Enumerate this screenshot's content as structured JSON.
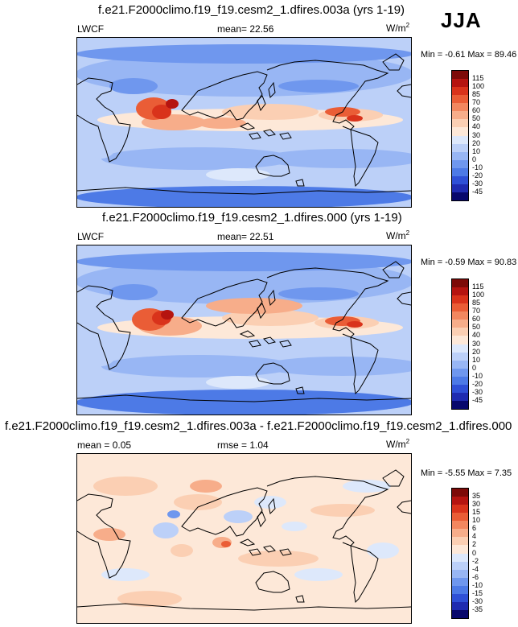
{
  "season": "JJA",
  "colors": {
    "abs_palette": [
      "#f2f2f2",
      "#08086c",
      "#1f2bb0",
      "#2f50d6",
      "#4d7ae6",
      "#6f97ee",
      "#98b6f4",
      "#bcd0f8",
      "#dde8fb",
      "#fde8d8",
      "#fbcfb3",
      "#f7ad8a",
      "#f2875f",
      "#ea5d36",
      "#d9331b",
      "#b51410",
      "#7d0a08"
    ],
    "diff_palette": [
      "#08086c",
      "#1f2bb0",
      "#2f50d6",
      "#4d7ae6",
      "#6f97ee",
      "#98b6f4",
      "#bcd0f8",
      "#dde8fb",
      "#fde8d8",
      "#fbcfb3",
      "#f7ad8a",
      "#f2875f",
      "#ea5d36",
      "#d9331b",
      "#b51410",
      "#7d0a08"
    ]
  },
  "panels": [
    {
      "title": "f.e21.F2000climo.f19_f19.cesm2_1.dfires.003a (yrs 1-19)",
      "left_label": "LWCF",
      "center_label": "mean=  22.56",
      "units": "W/m",
      "units_sup": "2",
      "min_max": "Min = -0.61 Max = 89.46"
    },
    {
      "title": "f.e21.F2000climo.f19_f19.cesm2_1.dfires.000 (yrs 1-19)",
      "left_label": "LWCF",
      "center_label": "mean=  22.51",
      "units": "W/m",
      "units_sup": "2",
      "min_max": "Min = -0.59 Max = 90.83"
    },
    {
      "title": "f.e21.F2000climo.f19_f19.cesm2_1.dfires.003a - f.e21.F2000climo.f19_f19.cesm2_1.dfires.000",
      "left_label": "mean =  0.05",
      "center_label": "rmse =  1.04",
      "units": "W/m",
      "units_sup": "2",
      "min_max": "Min = -5.55 Max =  7.35"
    }
  ],
  "chart_data": [
    {
      "type": "heatmap",
      "variable": "LWCF",
      "units": "W/m2",
      "mean": 22.56,
      "min": -0.61,
      "max": 89.46,
      "colorbar_levels": [
        "115",
        "100",
        "85",
        "70",
        "60",
        "50",
        "40",
        "30",
        "20",
        "10",
        "0",
        "-10",
        "-20",
        "-30",
        "-45"
      ]
    },
    {
      "type": "heatmap",
      "variable": "LWCF",
      "units": "W/m2",
      "mean": 22.51,
      "min": -0.59,
      "max": 90.83,
      "colorbar_levels": [
        "115",
        "100",
        "85",
        "70",
        "60",
        "50",
        "40",
        "30",
        "20",
        "10",
        "0",
        "-10",
        "-20",
        "-30",
        "-45"
      ]
    },
    {
      "type": "heatmap",
      "units": "W/m2",
      "mean": 0.05,
      "rmse": 1.04,
      "min": -5.55,
      "max": 7.35,
      "colorbar_levels": [
        "35",
        "30",
        "15",
        "10",
        "6",
        "4",
        "2",
        "0",
        "-2",
        "-4",
        "-6",
        "-10",
        "-15",
        "-30",
        "-35"
      ]
    }
  ]
}
